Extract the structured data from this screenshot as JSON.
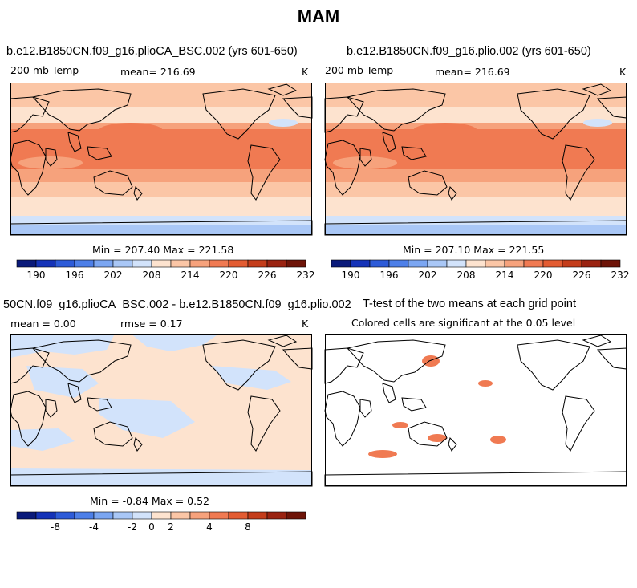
{
  "figure_title": "MAM",
  "panels": [
    {
      "title": "b.e12.B1850CN.f09_g16.plioCA_BSC.002 (yrs 601-650)",
      "left_label": "200 mb Temp",
      "center_label": "mean= 216.69",
      "right_label": "K",
      "minmax": "Min = 207.40 Max = 221.58"
    },
    {
      "title": "b.e12.B1850CN.f09_g16.plio.002 (yrs 601-650)",
      "left_label": "200 mb Temp",
      "center_label": "mean= 216.69",
      "right_label": "K",
      "minmax": "Min = 207.10 Max = 221.55"
    },
    {
      "title": "50CN.f09_g16.plioCA_BSC.002 - b.e12.B1850CN.f09_g16.plio.002",
      "left_label": "mean =    0.00",
      "center_label": "rmse =    0.17",
      "right_label": "K",
      "minmax": "Min =  -0.84 Max =    0.52"
    },
    {
      "title": "T-test of the two means at each grid point",
      "subtitle": "Colored cells are significant at the 0.05 level"
    }
  ],
  "colorbars": {
    "temperature": {
      "colors": [
        "#0a1a7a",
        "#1533b8",
        "#2d5bd8",
        "#4d7fe8",
        "#7ba6f2",
        "#a9c7f6",
        "#d2e3fb",
        "#fde3cf",
        "#fbc6a6",
        "#f6a27c",
        "#f07a52",
        "#e35c32",
        "#c43d1b",
        "#9a2311",
        "#6e1408"
      ],
      "tick_labels": [
        "190",
        "196",
        "202",
        "208",
        "214",
        "220",
        "226",
        "232"
      ]
    },
    "difference": {
      "colors": [
        "#0a1a7a",
        "#1533b8",
        "#2d5bd8",
        "#4d7fe8",
        "#7ba6f2",
        "#a9c7f6",
        "#d2e3fb",
        "#fde3cf",
        "#fbc6a6",
        "#f6a27c",
        "#f07a52",
        "#e35c32",
        "#c43d1b",
        "#9a2311",
        "#6e1408"
      ],
      "tick_labels": [
        "-8",
        "-4",
        "-2",
        "0",
        "2",
        "4",
        "8"
      ]
    }
  },
  "map_colors": {
    "tropical": "#f07a52",
    "subtropical": "#f6a27c",
    "midlat": "#fbc6a6",
    "pale": "#fde3cf",
    "cool": "#d2e3fb",
    "cold": "#a9c7f6",
    "diff_positive": "#fde3cf",
    "diff_negative": "#d2e3fb",
    "significant": "#f07a52"
  }
}
